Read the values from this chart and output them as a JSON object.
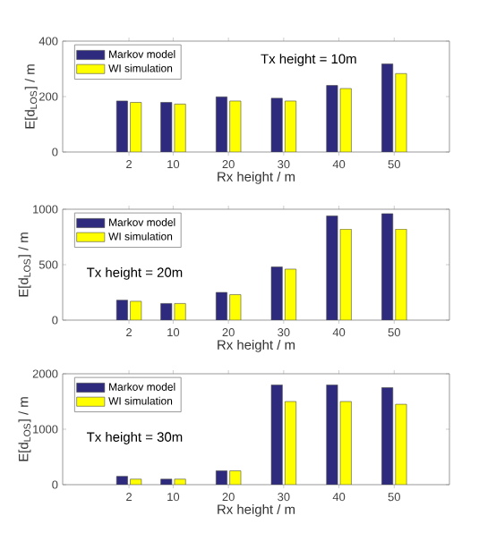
{
  "chart_data": [
    {
      "type": "bar",
      "x": [
        2,
        10,
        20,
        30,
        40,
        50
      ],
      "xlim": [
        -10,
        60
      ],
      "xticks": [
        2,
        10,
        20,
        30,
        40,
        50
      ],
      "ylim": [
        0,
        400
      ],
      "yticks": [
        0,
        200,
        400
      ],
      "xlabel": "Rx height / m",
      "ylabel": "E[d$_{LOS}$] / m",
      "legend": "top left",
      "annotations": [
        "Tx height = 10m"
      ],
      "series": [
        {
          "name": "Markov model",
          "color": "#2e2a7e",
          "values": [
            184,
            179,
            199,
            194,
            240,
            318
          ]
        },
        {
          "name": "WI simulation",
          "color": "#ffff00",
          "values": [
            179,
            173,
            184,
            184,
            229,
            283
          ]
        }
      ]
    },
    {
      "type": "bar",
      "x": [
        2,
        10,
        20,
        30,
        40,
        50
      ],
      "xlim": [
        -10,
        60
      ],
      "xticks": [
        2,
        10,
        20,
        30,
        40,
        50
      ],
      "ylim": [
        0,
        1000
      ],
      "yticks": [
        0,
        500,
        1000
      ],
      "xlabel": "Rx height / m",
      "ylabel": "E[d$_{LOS}$] / m",
      "legend": "top left",
      "annotations": [
        "Tx height = 20m"
      ],
      "series": [
        {
          "name": "Markov model",
          "color": "#2e2a7e",
          "values": [
            180,
            150,
            250,
            480,
            940,
            960
          ]
        },
        {
          "name": "WI simulation",
          "color": "#ffff00",
          "values": [
            170,
            150,
            230,
            460,
            820,
            820
          ]
        }
      ]
    },
    {
      "type": "bar",
      "x": [
        2,
        10,
        20,
        30,
        40,
        50
      ],
      "xlim": [
        -10,
        60
      ],
      "xticks": [
        2,
        10,
        20,
        30,
        40,
        50
      ],
      "ylim": [
        0,
        2000
      ],
      "yticks": [
        0,
        1000,
        2000
      ],
      "xlabel": "Rx height / m",
      "ylabel": "E[d$_{LOS}$] / m",
      "legend": "top left",
      "annotations": [
        "Tx height = 30m"
      ],
      "series": [
        {
          "name": "Markov model",
          "color": "#2e2a7e",
          "values": [
            150,
            100,
            250,
            1800,
            1800,
            1750
          ]
        },
        {
          "name": "WI simulation",
          "color": "#ffff00",
          "values": [
            100,
            100,
            250,
            1500,
            1500,
            1450
          ]
        }
      ]
    }
  ]
}
